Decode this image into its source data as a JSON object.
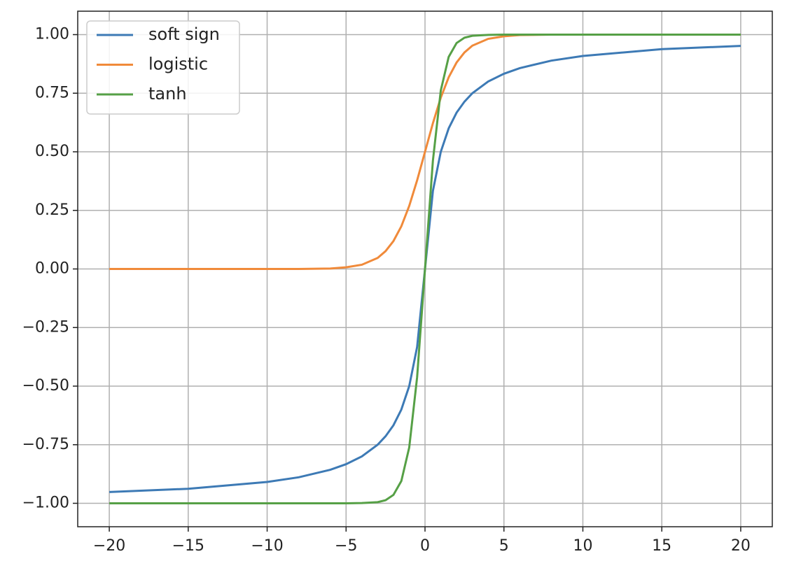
{
  "chart_data": {
    "type": "line",
    "x": [
      -20,
      -15,
      -10,
      -8,
      -6,
      -5,
      -4,
      -3,
      -2.5,
      -2,
      -1.5,
      -1,
      -0.5,
      0,
      0.5,
      1,
      1.5,
      2,
      2.5,
      3,
      4,
      5,
      6,
      8,
      10,
      15,
      20
    ],
    "series": [
      {
        "name": "soft sign",
        "color": "#3d7ab5",
        "values": [
          -0.952,
          -0.938,
          -0.909,
          -0.889,
          -0.857,
          -0.833,
          -0.8,
          -0.75,
          -0.714,
          -0.667,
          -0.6,
          -0.5,
          -0.333,
          0,
          0.333,
          0.5,
          0.6,
          0.667,
          0.714,
          0.75,
          0.8,
          0.833,
          0.857,
          0.889,
          0.909,
          0.938,
          0.952
        ]
      },
      {
        "name": "logistic",
        "color": "#f08a3a",
        "values": [
          0,
          0,
          0,
          0,
          0.002,
          0.007,
          0.018,
          0.047,
          0.076,
          0.119,
          0.182,
          0.269,
          0.378,
          0.5,
          0.622,
          0.731,
          0.818,
          0.881,
          0.924,
          0.953,
          0.982,
          0.993,
          0.998,
          1,
          1,
          1,
          1
        ]
      },
      {
        "name": "tanh",
        "color": "#56a046",
        "values": [
          -1,
          -1,
          -1,
          -1,
          -1,
          -1,
          -0.999,
          -0.995,
          -0.987,
          -0.964,
          -0.905,
          -0.762,
          -0.462,
          0,
          0.462,
          0.762,
          0.905,
          0.964,
          0.987,
          0.995,
          0.999,
          1,
          1,
          1,
          1,
          1,
          1
        ]
      }
    ],
    "xlim": [
      -22,
      22
    ],
    "ylim": [
      -1.1,
      1.1
    ],
    "xticks": [
      {
        "value": -20,
        "label": "−20"
      },
      {
        "value": -15,
        "label": "−15"
      },
      {
        "value": -10,
        "label": "−10"
      },
      {
        "value": -5,
        "label": "−5"
      },
      0,
      5,
      10,
      15,
      20
    ],
    "yticks": [
      {
        "value": -1,
        "label": "−1.00"
      },
      {
        "value": -0.75,
        "label": "−0.75"
      },
      {
        "value": -0.5,
        "label": "−0.50"
      },
      {
        "value": -0.25,
        "label": "−0.25"
      },
      {
        "value": 0,
        "label": "0.00"
      },
      {
        "value": 0.25,
        "label": "0.25"
      },
      {
        "value": 0.5,
        "label": "0.50"
      },
      {
        "value": 0.75,
        "label": "0.75"
      },
      {
        "value": 1,
        "label": "1.00"
      }
    ],
    "grid": true,
    "legend": "upper-left"
  }
}
